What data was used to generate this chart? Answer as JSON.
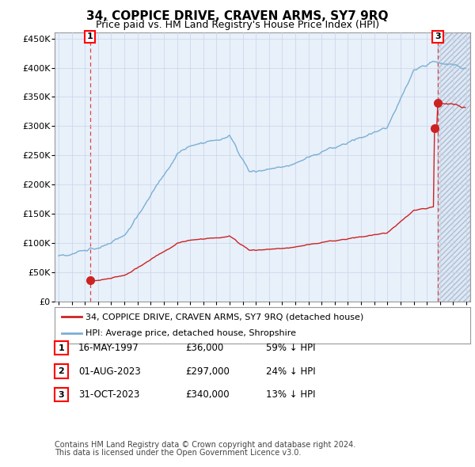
{
  "title": "34, COPPICE DRIVE, CRAVEN ARMS, SY7 9RQ",
  "subtitle": "Price paid vs. HM Land Registry's House Price Index (HPI)",
  "sale_dates_num": [
    1997.38,
    2023.58,
    2023.83
  ],
  "sale_prices": [
    36000,
    297000,
    340000
  ],
  "sale_labels": [
    "1",
    "2",
    "3"
  ],
  "hpi_label": "HPI: Average price, detached house, Shropshire",
  "property_label": "34, COPPICE DRIVE, CRAVEN ARMS, SY7 9RQ (detached house)",
  "table_rows": [
    [
      "1",
      "16-MAY-1997",
      "£36,000",
      "59% ↓ HPI"
    ],
    [
      "2",
      "01-AUG-2023",
      "£297,000",
      "24% ↓ HPI"
    ],
    [
      "3",
      "31-OCT-2023",
      "£340,000",
      "13% ↓ HPI"
    ]
  ],
  "footnote1": "Contains HM Land Registry data © Crown copyright and database right 2024.",
  "footnote2": "This data is licensed under the Open Government Licence v3.0.",
  "ylim": [
    0,
    460000
  ],
  "xlim_start": 1994.7,
  "xlim_end": 2026.3,
  "hpi_color": "#7bafd4",
  "property_color": "#cc2222",
  "dashed_line_color": "#dd4444",
  "marker_color": "#cc2222",
  "future_shade_color": "#dde8f5",
  "grid_color": "#c8d4e8",
  "background_color": "#e8f0fa"
}
